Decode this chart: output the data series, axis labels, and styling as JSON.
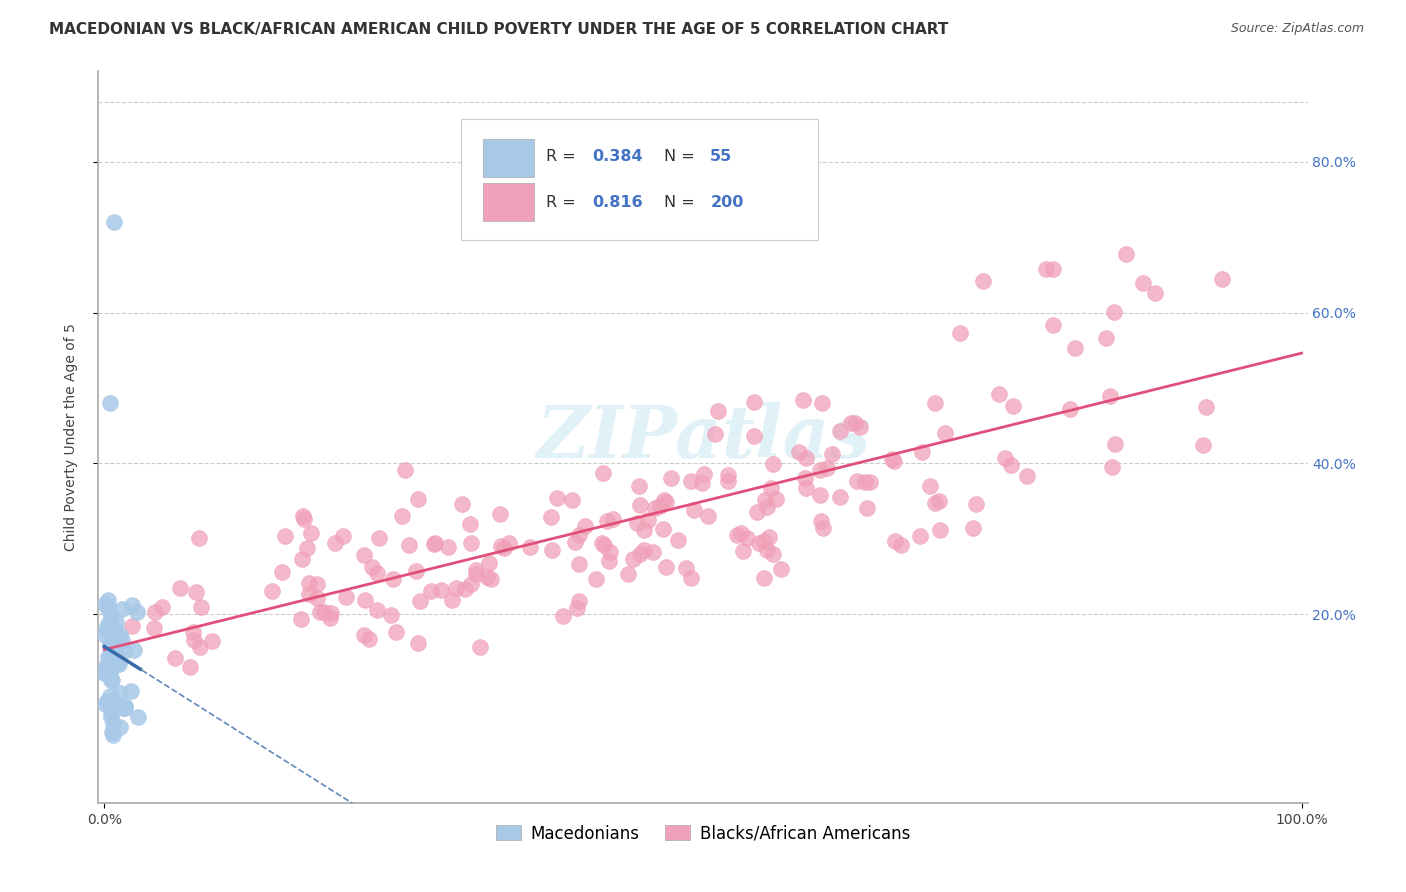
{
  "title": "MACEDONIAN VS BLACK/AFRICAN AMERICAN CHILD POVERTY UNDER THE AGE OF 5 CORRELATION CHART",
  "source": "Source: ZipAtlas.com",
  "ylabel_label": "Child Poverty Under the Age of 5",
  "background_color": "#ffffff",
  "xlim": [
    0.0,
    1.0
  ],
  "ylim": [
    -0.05,
    0.92
  ],
  "N_mac": 55,
  "N_black": 200,
  "R_mac": 0.384,
  "R_black": 0.816,
  "mac_scatter_color": "#a8c8e8",
  "mac_line_color": "#3a6aaa",
  "black_scatter_color": "#f0a0b8",
  "black_line_color": "#e0507a",
  "title_fontsize": 11,
  "source_fontsize": 9,
  "legend_fontsize": 12,
  "axis_label_fontsize": 10,
  "tick_fontsize": 10,
  "watermark_color": "#cce8f4",
  "r_n_color": "#4472c4",
  "grid_color": "#cccccc",
  "axis_color": "#aaaaaa"
}
